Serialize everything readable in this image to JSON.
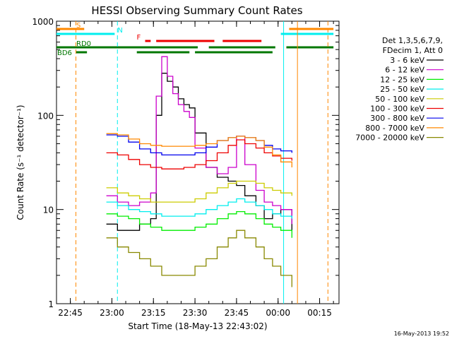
{
  "chart_data": {
    "type": "line",
    "title": "HESSI Observing Summary Count Rates",
    "xlabel": "Start Time (18-May-13 22:43:02)",
    "ylabel": "Count Rate (s⁻¹ detector⁻¹)",
    "y_scale": "log",
    "ylim": [
      1,
      1000
    ],
    "xlim": [
      "22:40",
      "00:22"
    ],
    "x_ticks": [
      "22:45",
      "23:00",
      "23:15",
      "23:30",
      "23:45",
      "00:00",
      "00:15"
    ],
    "y_ticks": [
      "1",
      "10",
      "100",
      "1000"
    ],
    "legend_placement": "right",
    "legend_header": [
      "Det 1,3,5,6,7,9,",
      "FDecim 1, Att 0"
    ],
    "series": [
      {
        "name": "3 - 6 keV",
        "color": "#000000",
        "x": [
          "22:58",
          "23:02",
          "23:06",
          "23:10",
          "23:14",
          "23:16",
          "23:18",
          "23:20",
          "23:22",
          "23:24",
          "23:26",
          "23:28",
          "23:30",
          "23:34",
          "23:38",
          "23:42",
          "23:45",
          "23:48",
          "23:52",
          "23:55",
          "23:58",
          "00:01",
          "00:05"
        ],
        "y": [
          7,
          6,
          6,
          7,
          8,
          100,
          280,
          230,
          200,
          150,
          130,
          120,
          65,
          28,
          22,
          20,
          18,
          14,
          11,
          8,
          9,
          10,
          6
        ]
      },
      {
        "name": "6 - 12 keV",
        "color": "#cc00cc",
        "x": [
          "22:58",
          "23:02",
          "23:06",
          "23:10",
          "23:14",
          "23:16",
          "23:18",
          "23:20",
          "23:22",
          "23:24",
          "23:26",
          "23:28",
          "23:30",
          "23:34",
          "23:38",
          "23:42",
          "23:45",
          "23:48",
          "23:52",
          "23:55",
          "23:58",
          "00:01",
          "00:05"
        ],
        "y": [
          14,
          12,
          11,
          12,
          15,
          160,
          420,
          260,
          170,
          130,
          110,
          95,
          45,
          28,
          24,
          28,
          60,
          30,
          16,
          12,
          11,
          10,
          7
        ]
      },
      {
        "name": "12 - 25 keV",
        "color": "#00ee00",
        "x": [
          "22:58",
          "23:02",
          "23:06",
          "23:10",
          "23:14",
          "23:18",
          "23:22",
          "23:26",
          "23:30",
          "23:34",
          "23:38",
          "23:42",
          "23:45",
          "23:48",
          "23:52",
          "23:55",
          "23:58",
          "00:01",
          "00:05"
        ],
        "y": [
          9,
          8.5,
          8,
          7,
          6.5,
          6,
          6,
          6,
          6.5,
          7,
          8,
          9,
          9.5,
          9,
          8,
          7,
          6.5,
          6,
          5
        ]
      },
      {
        "name": "25 - 50 keV",
        "color": "#00eeee",
        "x": [
          "22:58",
          "23:02",
          "23:06",
          "23:10",
          "23:14",
          "23:18",
          "23:22",
          "23:26",
          "23:30",
          "23:34",
          "23:38",
          "23:42",
          "23:45",
          "23:48",
          "23:52",
          "23:55",
          "23:58",
          "00:01",
          "00:05"
        ],
        "y": [
          12,
          11,
          10,
          9.5,
          9,
          8.5,
          8.5,
          8.5,
          9,
          10,
          11,
          12,
          13,
          12,
          11,
          10,
          9,
          8.5,
          8
        ]
      },
      {
        "name": "50 - 100 keV",
        "color": "#cccc00",
        "x": [
          "22:58",
          "23:02",
          "23:06",
          "23:10",
          "23:14",
          "23:18",
          "23:22",
          "23:26",
          "23:30",
          "23:34",
          "23:38",
          "23:42",
          "23:45",
          "23:48",
          "23:52",
          "23:55",
          "23:58",
          "00:01",
          "00:05"
        ],
        "y": [
          17,
          15,
          14,
          13,
          12,
          12,
          12,
          12,
          13,
          15,
          17,
          19,
          20,
          20,
          19,
          17,
          16,
          15,
          14
        ]
      },
      {
        "name": "100 - 300 keV",
        "color": "#ee0000",
        "x": [
          "22:58",
          "23:02",
          "23:06",
          "23:10",
          "23:14",
          "23:18",
          "23:22",
          "23:26",
          "23:30",
          "23:34",
          "23:38",
          "23:42",
          "23:45",
          "23:48",
          "23:52",
          "23:55",
          "23:58",
          "00:01",
          "00:05"
        ],
        "y": [
          40,
          38,
          34,
          30,
          28,
          27,
          27,
          28,
          30,
          33,
          40,
          48,
          55,
          50,
          45,
          40,
          37,
          35,
          33
        ]
      },
      {
        "name": "300 - 800 keV",
        "color": "#0000ee",
        "x": [
          "22:58",
          "23:02",
          "23:06",
          "23:10",
          "23:14",
          "23:18",
          "23:22",
          "23:26",
          "23:30",
          "23:34",
          "23:38",
          "23:42",
          "23:45",
          "23:48",
          "23:52",
          "23:55",
          "23:58",
          "00:01",
          "00:05"
        ],
        "y": [
          62,
          60,
          52,
          44,
          40,
          38,
          38,
          38,
          40,
          46,
          54,
          58,
          60,
          58,
          54,
          48,
          44,
          42,
          40
        ]
      },
      {
        "name": "800 - 7000 keV",
        "color": "#ff8800",
        "x": [
          "22:58",
          "23:02",
          "23:06",
          "23:10",
          "23:14",
          "23:18",
          "23:22",
          "23:26",
          "23:30",
          "23:34",
          "23:38",
          "23:42",
          "23:45",
          "23:48",
          "23:52",
          "23:55",
          "23:58",
          "00:01",
          "00:05"
        ],
        "y": [
          64,
          62,
          56,
          50,
          48,
          47,
          47,
          47,
          48,
          50,
          54,
          58,
          60,
          58,
          54,
          46,
          38,
          32,
          28
        ]
      },
      {
        "name": "7000 - 20000 keV",
        "color": "#888800",
        "x": [
          "22:58",
          "23:02",
          "23:06",
          "23:10",
          "23:14",
          "23:18",
          "23:22",
          "23:26",
          "23:30",
          "23:34",
          "23:38",
          "23:42",
          "23:45",
          "23:48",
          "23:52",
          "23:55",
          "23:58",
          "00:01",
          "00:05"
        ],
        "y": [
          5,
          4,
          3.5,
          3,
          2.5,
          2,
          2,
          2,
          2.5,
          3,
          4,
          5,
          6,
          5,
          4,
          3,
          2.5,
          2,
          1.5
        ]
      }
    ],
    "flag_bars": [
      {
        "label": "S",
        "color": "#ff8800",
        "segments": [
          [
            "22:40",
            "22:50"
          ],
          [
            "00:04",
            "00:20"
          ]
        ]
      },
      {
        "label": "N",
        "color": "#00eeee",
        "segments": [
          [
            "22:40",
            "23:01"
          ],
          [
            "00:01",
            "00:20"
          ]
        ]
      },
      {
        "label": "F",
        "color": "#ee0000",
        "segments": [
          [
            "23:12",
            "23:14"
          ],
          [
            "23:16",
            "23:37"
          ],
          [
            "23:40",
            "23:54"
          ]
        ]
      },
      {
        "label": "RD0",
        "color": "#007700",
        "segments": [
          [
            "22:40",
            "23:31"
          ],
          [
            "23:35",
            "23:59"
          ],
          [
            "00:03",
            "00:20"
          ]
        ]
      },
      {
        "label": "BD6",
        "color": "#007700",
        "segments": [
          [
            "22:47",
            "22:51"
          ],
          [
            "23:09",
            "23:28"
          ],
          [
            "23:30",
            "23:58"
          ]
        ]
      }
    ],
    "vlines": [
      {
        "x": "22:47",
        "color": "#ff8800",
        "dashed": true
      },
      {
        "x": "23:02",
        "color": "#00eeee",
        "dashed": true
      },
      {
        "x": "00:02",
        "color": "#00eeee",
        "dashed": false
      },
      {
        "x": "00:07",
        "color": "#ff8800",
        "dashed": false
      },
      {
        "x": "00:18",
        "color": "#ff8800",
        "dashed": true
      }
    ]
  },
  "footer": {
    "timestamp": "16-May-2013 19:52"
  }
}
